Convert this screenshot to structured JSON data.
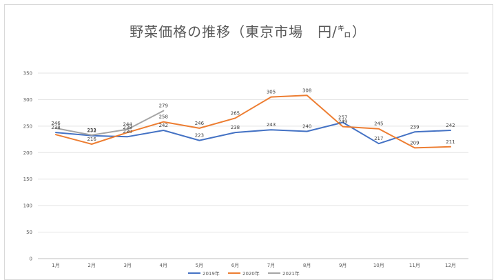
{
  "chart_data": {
    "type": "line",
    "title": "野菜価格の推移（東京市場　円/㌔）",
    "xlabel": "",
    "ylabel": "",
    "ylim": [
      0,
      350
    ],
    "yticks": [
      0,
      50,
      100,
      150,
      200,
      250,
      300,
      350
    ],
    "grid": true,
    "legend_position": "bottom",
    "categories": [
      "1月",
      "2月",
      "3月",
      "4月",
      "5月",
      "6月",
      "7月",
      "8月",
      "9月",
      "10月",
      "11月",
      "12月"
    ],
    "series": [
      {
        "name": "2019年",
        "color": "#4472c4",
        "values": [
          238,
          232,
          230,
          242,
          223,
          238,
          243,
          240,
          257,
          217,
          239,
          242
        ]
      },
      {
        "name": "2020年",
        "color": "#ed7d31",
        "values": [
          234,
          216,
          238,
          258,
          246,
          265,
          305,
          308,
          249,
          245,
          209,
          211
        ]
      },
      {
        "name": "2021年",
        "color": "#a5a5a5",
        "values": [
          246,
          233,
          244,
          279,
          null,
          null,
          null,
          null,
          null,
          null,
          null,
          null
        ]
      }
    ],
    "data_labels": [
      {
        "series": 0,
        "index": 0,
        "text": "238"
      },
      {
        "series": 0,
        "index": 1,
        "text": "232"
      },
      {
        "series": 0,
        "index": 2,
        "text": "230"
      },
      {
        "series": 0,
        "index": 3,
        "text": "242"
      },
      {
        "series": 0,
        "index": 4,
        "text": "223"
      },
      {
        "series": 0,
        "index": 5,
        "text": "238"
      },
      {
        "series": 0,
        "index": 6,
        "text": "243"
      },
      {
        "series": 0,
        "index": 7,
        "text": "240"
      },
      {
        "series": 0,
        "index": 8,
        "text": "257"
      },
      {
        "series": 0,
        "index": 9,
        "text": "217"
      },
      {
        "series": 0,
        "index": 10,
        "text": "239"
      },
      {
        "series": 0,
        "index": 11,
        "text": "242"
      },
      {
        "series": 1,
        "index": 1,
        "text": "216"
      },
      {
        "series": 1,
        "index": 2,
        "text": "238"
      },
      {
        "series": 1,
        "index": 3,
        "text": "258"
      },
      {
        "series": 1,
        "index": 4,
        "text": "246"
      },
      {
        "series": 1,
        "index": 5,
        "text": "265"
      },
      {
        "series": 1,
        "index": 6,
        "text": "305"
      },
      {
        "series": 1,
        "index": 7,
        "text": "308"
      },
      {
        "series": 1,
        "index": 8,
        "text": "249"
      },
      {
        "series": 1,
        "index": 9,
        "text": "245"
      },
      {
        "series": 1,
        "index": 10,
        "text": "209"
      },
      {
        "series": 1,
        "index": 11,
        "text": "211"
      },
      {
        "series": 2,
        "index": 0,
        "text": "246"
      },
      {
        "series": 2,
        "index": 1,
        "text": "233"
      },
      {
        "series": 2,
        "index": 2,
        "text": "244"
      },
      {
        "series": 2,
        "index": 3,
        "text": "279"
      }
    ]
  }
}
